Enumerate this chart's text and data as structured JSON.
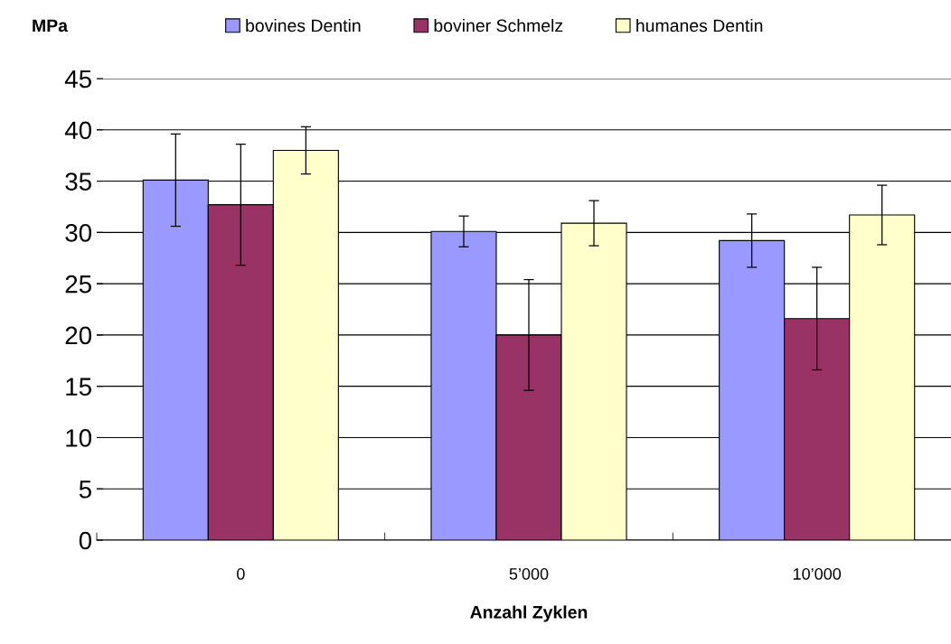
{
  "chart_data": {
    "type": "bar",
    "ylabel": "MPa",
    "xlabel": "Anzahl Zyklen",
    "categories": [
      "0",
      "5’000",
      "10’000"
    ],
    "series": [
      {
        "name": "bovines Dentin",
        "color": "#9999ff",
        "values": [
          35.1,
          30.1,
          29.2
        ],
        "errors": [
          4.5,
          1.5,
          2.6
        ]
      },
      {
        "name": "boviner Schmelz",
        "color": "#993366",
        "values": [
          32.7,
          20.0,
          21.6
        ],
        "errors": [
          5.9,
          5.4,
          5.0
        ]
      },
      {
        "name": "humanes Dentin",
        "color": "#ffffcc",
        "values": [
          38.0,
          30.9,
          31.7
        ],
        "errors": [
          2.3,
          2.2,
          2.9
        ]
      }
    ],
    "ylim": [
      0,
      45
    ],
    "yticks": [
      0,
      5,
      10,
      15,
      20,
      25,
      30,
      35,
      40,
      45
    ],
    "grid": "y",
    "legend": "top"
  }
}
